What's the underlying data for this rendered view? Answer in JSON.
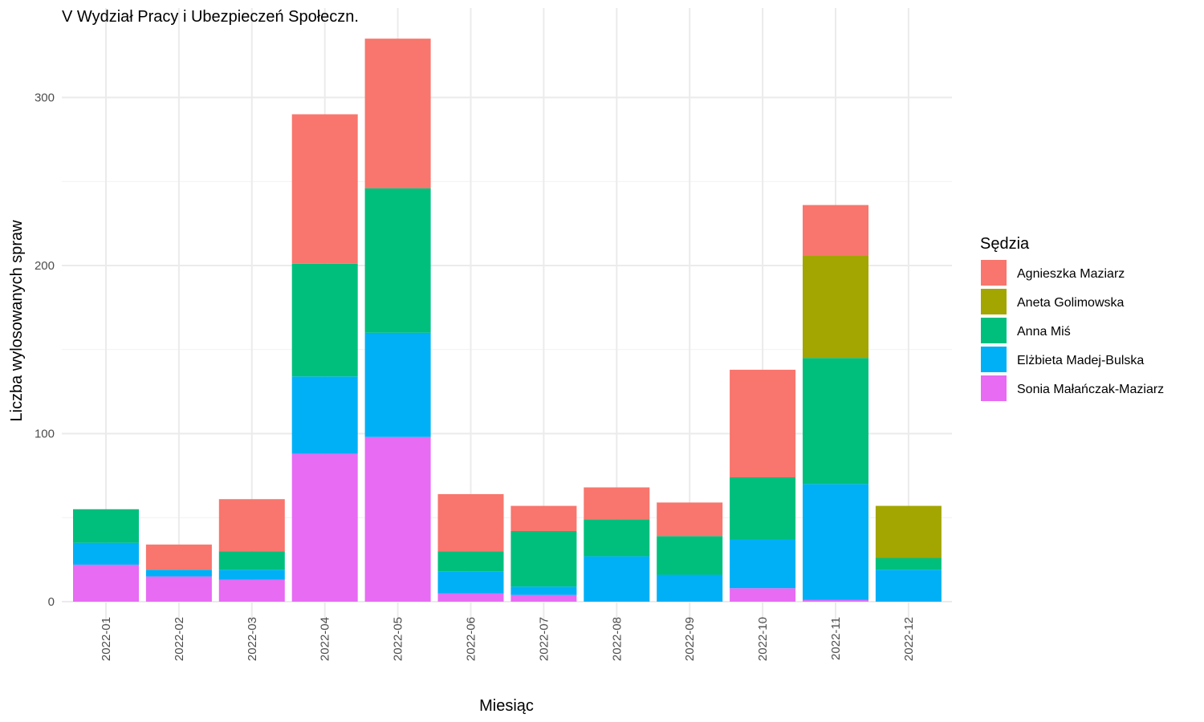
{
  "chart_data": {
    "type": "bar",
    "stacked": true,
    "title": "V Wydział Pracy i Ubezpieczeń Społeczn.",
    "xlabel": "Miesiąc",
    "ylabel": "Liczba wylosowanych spraw",
    "ylim": [
      0,
      335
    ],
    "yticks": [
      0,
      100,
      200,
      300
    ],
    "grid": true,
    "legend_title": "Sędzia",
    "legend_position": "right",
    "categories": [
      "2022-01",
      "2022-02",
      "2022-03",
      "2022-04",
      "2022-05",
      "2022-06",
      "2022-07",
      "2022-08",
      "2022-09",
      "2022-10",
      "2022-11",
      "2022-12"
    ],
    "series": [
      {
        "name": "Sonia Małańczak-Maziarz",
        "color": "#E76BF3",
        "values": [
          22,
          15,
          13,
          88,
          98,
          5,
          4,
          0,
          0,
          8,
          1,
          0
        ]
      },
      {
        "name": "Elżbieta Madej-Bulska",
        "color": "#00B0F6",
        "values": [
          13,
          4,
          6,
          46,
          62,
          13,
          5,
          27,
          16,
          29,
          69,
          19
        ]
      },
      {
        "name": "Anna Miś",
        "color": "#00BF7D",
        "values": [
          20,
          0,
          11,
          67,
          86,
          12,
          33,
          22,
          23,
          37,
          75,
          7
        ]
      },
      {
        "name": "Aneta Golimowska",
        "color": "#A3A500",
        "values": [
          0,
          0,
          0,
          0,
          0,
          0,
          0,
          0,
          0,
          0,
          61,
          31
        ]
      },
      {
        "name": "Agnieszka Maziarz",
        "color": "#F8766D",
        "values": [
          0,
          15,
          31,
          89,
          89,
          34,
          15,
          19,
          20,
          64,
          30,
          0
        ]
      }
    ],
    "legend_order": [
      "Agnieszka Maziarz",
      "Aneta Golimowska",
      "Anna Miś",
      "Elżbieta Madej-Bulska",
      "Sonia Małańczak-Maziarz"
    ]
  }
}
